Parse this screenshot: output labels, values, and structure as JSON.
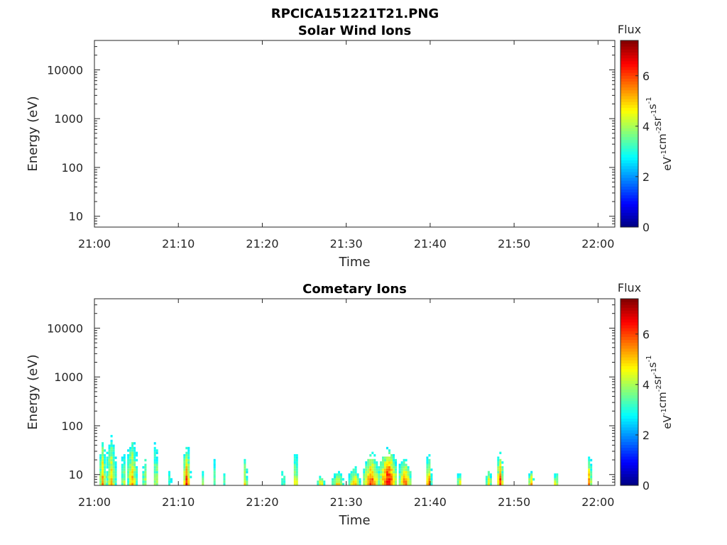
{
  "figure_title": "RPCICA151221T21.PNG",
  "colors": {
    "colormap": "jet",
    "axes": "#262626",
    "background": "#ffffff"
  },
  "chart_data": [
    {
      "type": "heatmap",
      "title": "Solar Wind Ions",
      "xlabel": "Time",
      "ylabel": "Energy (eV)",
      "y_scale": "log",
      "xlim": [
        "21:00",
        "22:02"
      ],
      "ylim": [
        6,
        40000
      ],
      "x_ticks": [
        "21:00",
        "21:10",
        "21:20",
        "21:30",
        "21:40",
        "21:50",
        "22:00"
      ],
      "y_ticks": [
        "10",
        "100",
        "1000",
        "10000"
      ],
      "colorbar": {
        "title": "Flux",
        "unit": {
          "base": [
            "eV",
            "cm",
            "sr",
            "s"
          ],
          "exp": [
            "-1",
            "-2",
            "-1",
            "-1"
          ]
        },
        "ticks": [
          "0",
          "2",
          "4",
          "6"
        ],
        "range": [
          0,
          7.4
        ]
      },
      "cells": []
    },
    {
      "type": "heatmap",
      "title": "Cometary Ions",
      "xlabel": "Time",
      "ylabel": "Energy (eV)",
      "y_scale": "log",
      "xlim": [
        "21:00",
        "22:02"
      ],
      "ylim": [
        6,
        40000
      ],
      "x_ticks": [
        "21:00",
        "21:10",
        "21:20",
        "21:30",
        "21:40",
        "21:50",
        "22:00"
      ],
      "y_ticks": [
        "10",
        "100",
        "1000",
        "10000"
      ],
      "colorbar": {
        "title": "Flux",
        "unit": {
          "base": [
            "eV",
            "cm",
            "sr",
            "s"
          ],
          "exp": [
            "-1",
            "-2",
            "-1",
            "-1"
          ]
        },
        "ticks": [
          "0",
          "2",
          "4",
          "6"
        ],
        "range": [
          0,
          7.4
        ]
      },
      "bursts": [
        {
          "time": "21:01:00",
          "duration_min": 0.8,
          "emax": 60,
          "peak_flux": 5.5
        },
        {
          "time": "21:02:00",
          "duration_min": 1.2,
          "emax": 70,
          "peak_flux": 5.2
        },
        {
          "time": "21:03:30",
          "duration_min": 0.6,
          "emax": 40,
          "peak_flux": 4.6
        },
        {
          "time": "21:04:30",
          "duration_min": 1.2,
          "emax": 70,
          "peak_flux": 5.3
        },
        {
          "time": "21:06:00",
          "duration_min": 0.6,
          "emax": 40,
          "peak_flux": 4.5
        },
        {
          "time": "21:07:20",
          "duration_min": 0.5,
          "emax": 70,
          "peak_flux": 5.0
        },
        {
          "time": "21:09:00",
          "duration_min": 0.4,
          "emax": 20,
          "peak_flux": 4.0
        },
        {
          "time": "21:11:00",
          "duration_min": 0.8,
          "emax": 35,
          "peak_flux": 6.4
        },
        {
          "time": "21:13:00",
          "duration_min": 0.4,
          "emax": 15,
          "peak_flux": 4.3
        },
        {
          "time": "21:14:20",
          "duration_min": 0.3,
          "emax": 35,
          "peak_flux": 4.0
        },
        {
          "time": "21:15:30",
          "duration_min": 0.3,
          "emax": 14,
          "peak_flux": 3.8
        },
        {
          "time": "21:18:00",
          "duration_min": 0.4,
          "emax": 25,
          "peak_flux": 5.7
        },
        {
          "time": "21:22:30",
          "duration_min": 0.5,
          "emax": 20,
          "peak_flux": 4.3
        },
        {
          "time": "21:24:00",
          "duration_min": 0.5,
          "emax": 40,
          "peak_flux": 5.4
        },
        {
          "time": "21:27:00",
          "duration_min": 1.0,
          "emax": 9,
          "peak_flux": 5.0
        },
        {
          "time": "21:29:00",
          "duration_min": 1.5,
          "emax": 12,
          "peak_flux": 5.0
        },
        {
          "time": "21:31:00",
          "duration_min": 1.5,
          "emax": 15,
          "peak_flux": 5.2
        },
        {
          "time": "21:33:00",
          "duration_min": 2.0,
          "emax": 25,
          "peak_flux": 6.3
        },
        {
          "time": "21:35:00",
          "duration_min": 2.0,
          "emax": 30,
          "peak_flux": 7.0
        },
        {
          "time": "21:37:00",
          "duration_min": 1.5,
          "emax": 20,
          "peak_flux": 6.0
        },
        {
          "time": "21:39:50",
          "duration_min": 0.6,
          "emax": 25,
          "peak_flux": 6.2
        },
        {
          "time": "21:43:30",
          "duration_min": 0.6,
          "emax": 12,
          "peak_flux": 5.2
        },
        {
          "time": "21:47:00",
          "duration_min": 0.8,
          "emax": 14,
          "peak_flux": 5.0
        },
        {
          "time": "21:48:20",
          "duration_min": 0.7,
          "emax": 25,
          "peak_flux": 6.5
        },
        {
          "time": "21:52:00",
          "duration_min": 0.6,
          "emax": 12,
          "peak_flux": 5.8
        },
        {
          "time": "21:55:00",
          "duration_min": 0.5,
          "emax": 12,
          "peak_flux": 5.4
        },
        {
          "time": "21:59:00",
          "duration_min": 0.4,
          "emax": 25,
          "peak_flux": 6.4
        }
      ]
    }
  ]
}
